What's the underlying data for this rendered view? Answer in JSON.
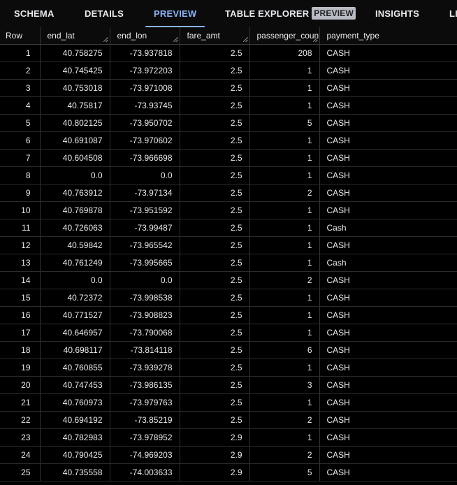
{
  "tabs": [
    {
      "label": "SCHEMA",
      "active": false
    },
    {
      "label": "DETAILS",
      "active": false
    },
    {
      "label": "PREVIEW",
      "active": true
    },
    {
      "label": "TABLE EXPLORER",
      "badge": "PREVIEW",
      "active": false
    },
    {
      "label": "INSIGHTS",
      "active": false
    },
    {
      "label": "LI",
      "active": false
    }
  ],
  "colors": {
    "accent": "#8ab4f8",
    "background": "#000000",
    "text": "#e8eaed"
  },
  "table": {
    "columns": [
      "Row",
      "end_lat",
      "end_lon",
      "fare_amt",
      "passenger_count",
      "payment_type"
    ],
    "rows": [
      [
        "1",
        "40.758275",
        "-73.937818",
        "2.5",
        "208",
        "CASH"
      ],
      [
        "2",
        "40.745425",
        "-73.972203",
        "2.5",
        "1",
        "CASH"
      ],
      [
        "3",
        "40.753018",
        "-73.971008",
        "2.5",
        "1",
        "CASH"
      ],
      [
        "4",
        "40.75817",
        "-73.93745",
        "2.5",
        "1",
        "CASH"
      ],
      [
        "5",
        "40.802125",
        "-73.950702",
        "2.5",
        "5",
        "CASH"
      ],
      [
        "6",
        "40.691087",
        "-73.970602",
        "2.5",
        "1",
        "CASH"
      ],
      [
        "7",
        "40.604508",
        "-73.966698",
        "2.5",
        "1",
        "CASH"
      ],
      [
        "8",
        "0.0",
        "0.0",
        "2.5",
        "1",
        "CASH"
      ],
      [
        "9",
        "40.763912",
        "-73.97134",
        "2.5",
        "2",
        "CASH"
      ],
      [
        "10",
        "40.769878",
        "-73.951592",
        "2.5",
        "1",
        "CASH"
      ],
      [
        "11",
        "40.726063",
        "-73.99487",
        "2.5",
        "1",
        "Cash"
      ],
      [
        "12",
        "40.59842",
        "-73.965542",
        "2.5",
        "1",
        "CASH"
      ],
      [
        "13",
        "40.761249",
        "-73.995665",
        "2.5",
        "1",
        "Cash"
      ],
      [
        "14",
        "0.0",
        "0.0",
        "2.5",
        "2",
        "CASH"
      ],
      [
        "15",
        "40.72372",
        "-73.998538",
        "2.5",
        "1",
        "CASH"
      ],
      [
        "16",
        "40.771527",
        "-73.908823",
        "2.5",
        "1",
        "CASH"
      ],
      [
        "17",
        "40.646957",
        "-73.790068",
        "2.5",
        "1",
        "CASH"
      ],
      [
        "18",
        "40.698117",
        "-73.814118",
        "2.5",
        "6",
        "CASH"
      ],
      [
        "19",
        "40.760855",
        "-73.939278",
        "2.5",
        "1",
        "CASH"
      ],
      [
        "20",
        "40.747453",
        "-73.986135",
        "2.5",
        "3",
        "CASH"
      ],
      [
        "21",
        "40.760973",
        "-73.979763",
        "2.5",
        "1",
        "CASH"
      ],
      [
        "22",
        "40.694192",
        "-73.85219",
        "2.5",
        "2",
        "CASH"
      ],
      [
        "23",
        "40.782983",
        "-73.978952",
        "2.9",
        "1",
        "CASH"
      ],
      [
        "24",
        "40.790425",
        "-74.969203",
        "2.9",
        "2",
        "CASH"
      ],
      [
        "25",
        "40.735558",
        "-74.003633",
        "2.9",
        "5",
        "CASH"
      ]
    ]
  }
}
